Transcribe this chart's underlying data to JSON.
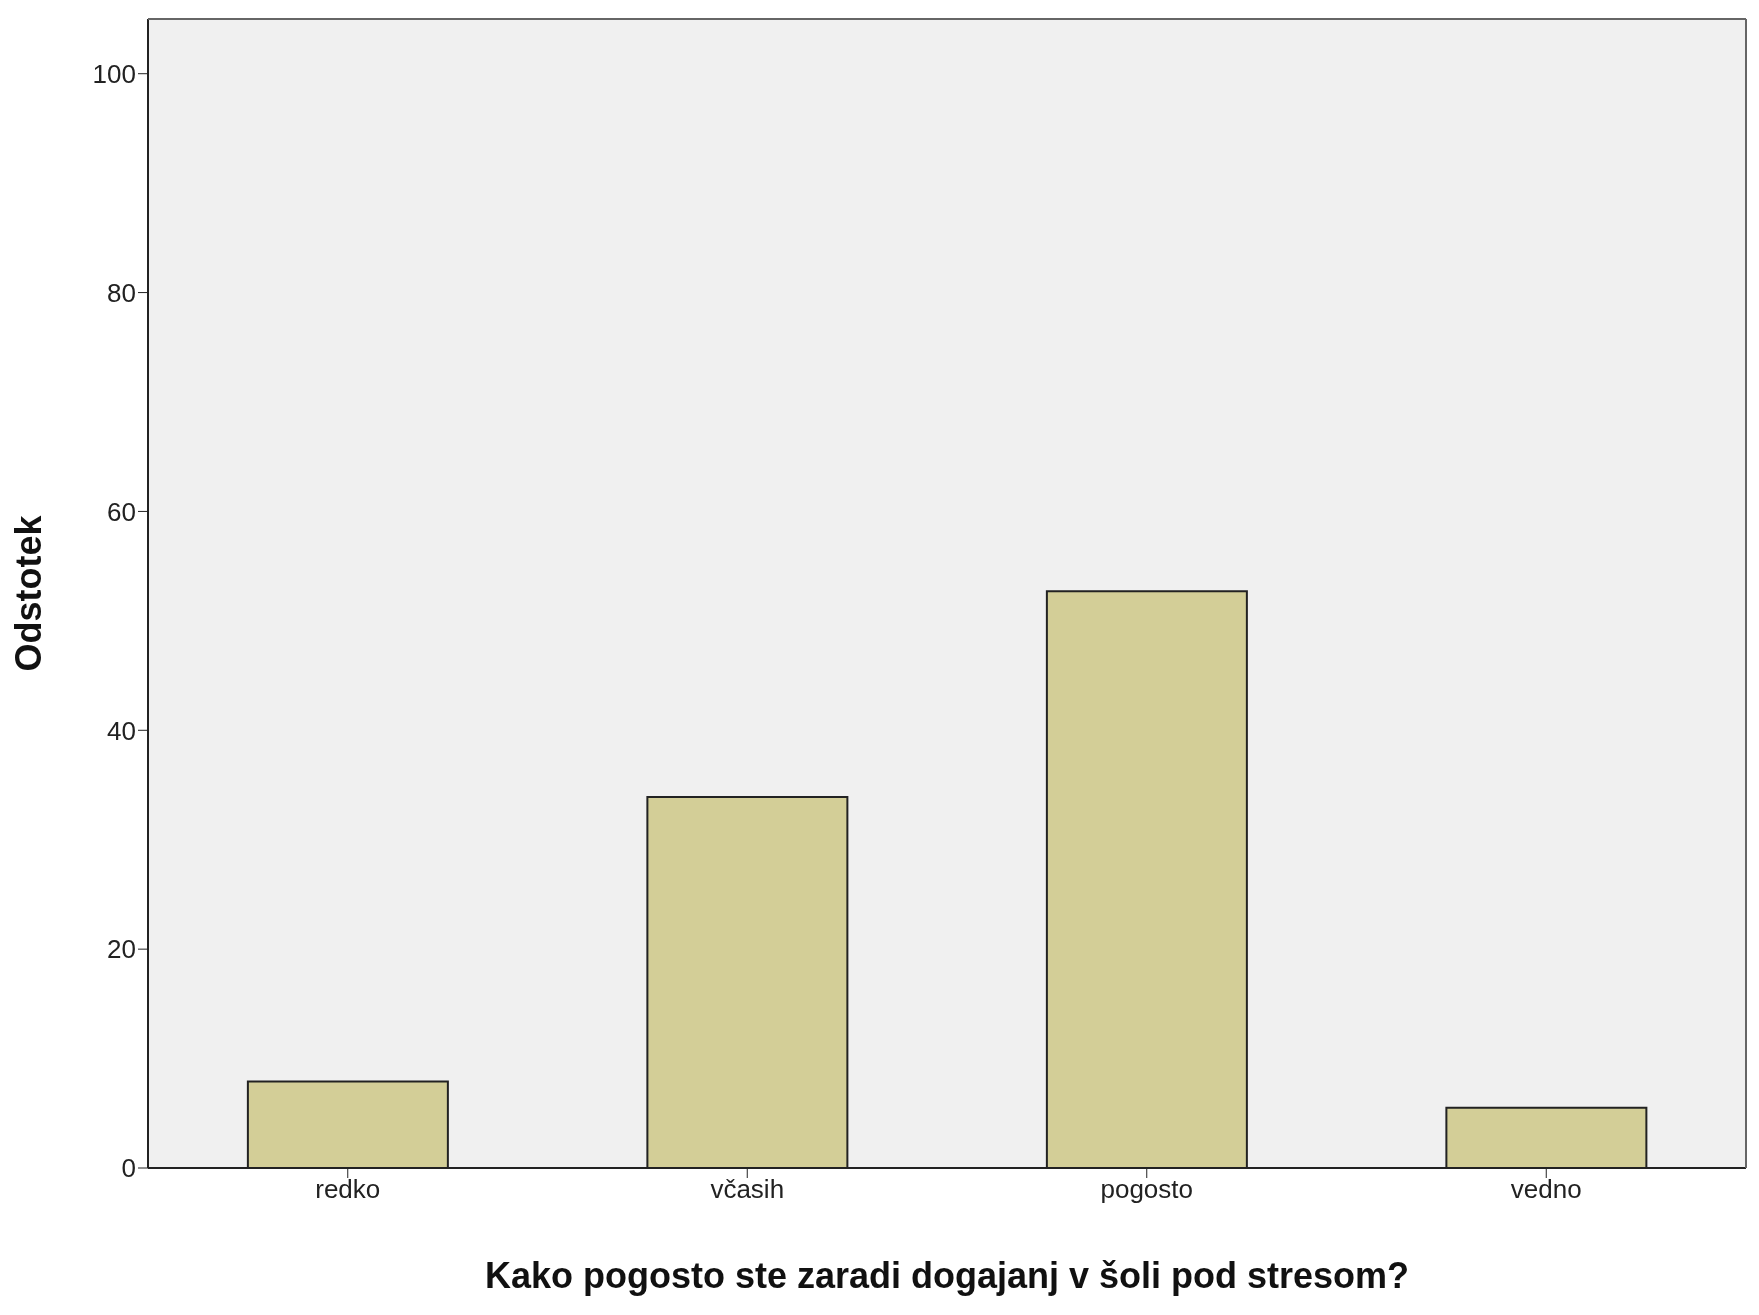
{
  "chart_data": {
    "type": "bar",
    "xlabel": "Kako pogosto ste zaradi dogajanj v šoli pod stresom?",
    "ylabel": "Odstotek",
    "categories": [
      "redko",
      "včasih",
      "pogosto",
      "vedno"
    ],
    "values": [
      7.9,
      33.9,
      52.7,
      5.5
    ],
    "color": "#d3ce97",
    "ylim": [
      0,
      105
    ],
    "yticks": [
      0,
      20,
      40,
      60,
      80,
      100
    ],
    "grid": false
  }
}
